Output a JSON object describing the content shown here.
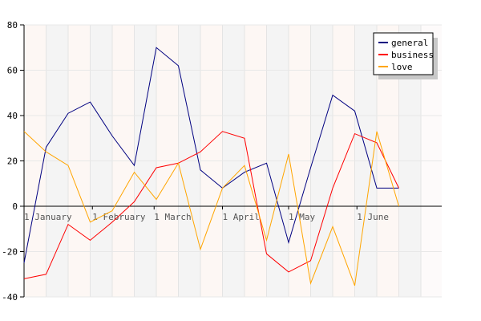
{
  "chart_data": {
    "type": "line",
    "title": "",
    "xlabel": "",
    "ylabel": "",
    "ylim": [
      -40,
      80
    ],
    "yticks": [
      -40,
      -20,
      0,
      20,
      40,
      60,
      80
    ],
    "grid": true,
    "legend_position": "top-right",
    "x": [
      "1 Jan",
      "11 Jan",
      "21 Jan",
      "31 Jan",
      "10 Feb",
      "20 Feb",
      "1 Mar",
      "11 Mar",
      "21 Mar",
      "31 Mar",
      "10 Apr",
      "20 Apr",
      "30 Apr",
      "10 May",
      "20 May",
      "30 May",
      "9 Jun",
      "19 Jun",
      "29 Jun"
    ],
    "x_tick_labels": [
      {
        "label": "1 January",
        "at": "1 Jan"
      },
      {
        "label": "1 February",
        "at": "1 Feb"
      },
      {
        "label": "1 March",
        "at": "1 Mar"
      },
      {
        "label": "1 April",
        "at": "1 Apr"
      },
      {
        "label": "1 May",
        "at": "1 May"
      },
      {
        "label": "1 June",
        "at": "1 Jun"
      }
    ],
    "series": [
      {
        "name": "general",
        "color": "#000080",
        "values": [
          -25,
          26,
          41,
          46,
          31,
          18,
          70,
          62,
          16,
          8,
          15,
          19,
          -16,
          17,
          49,
          42,
          8,
          8,
          null
        ]
      },
      {
        "name": "business",
        "color": "#ff0000",
        "values": [
          -32,
          -30,
          -8,
          -15,
          -7,
          2,
          17,
          19,
          24,
          33,
          30,
          -21,
          -29,
          -24,
          8,
          32,
          28,
          8,
          null
        ]
      },
      {
        "name": "love",
        "color": "#ffa500",
        "values": [
          33,
          24,
          18,
          -7,
          -2,
          15,
          3,
          19,
          -19,
          8,
          18,
          -15,
          23,
          -34,
          -9,
          -35,
          33,
          0,
          null
        ]
      }
    ]
  }
}
